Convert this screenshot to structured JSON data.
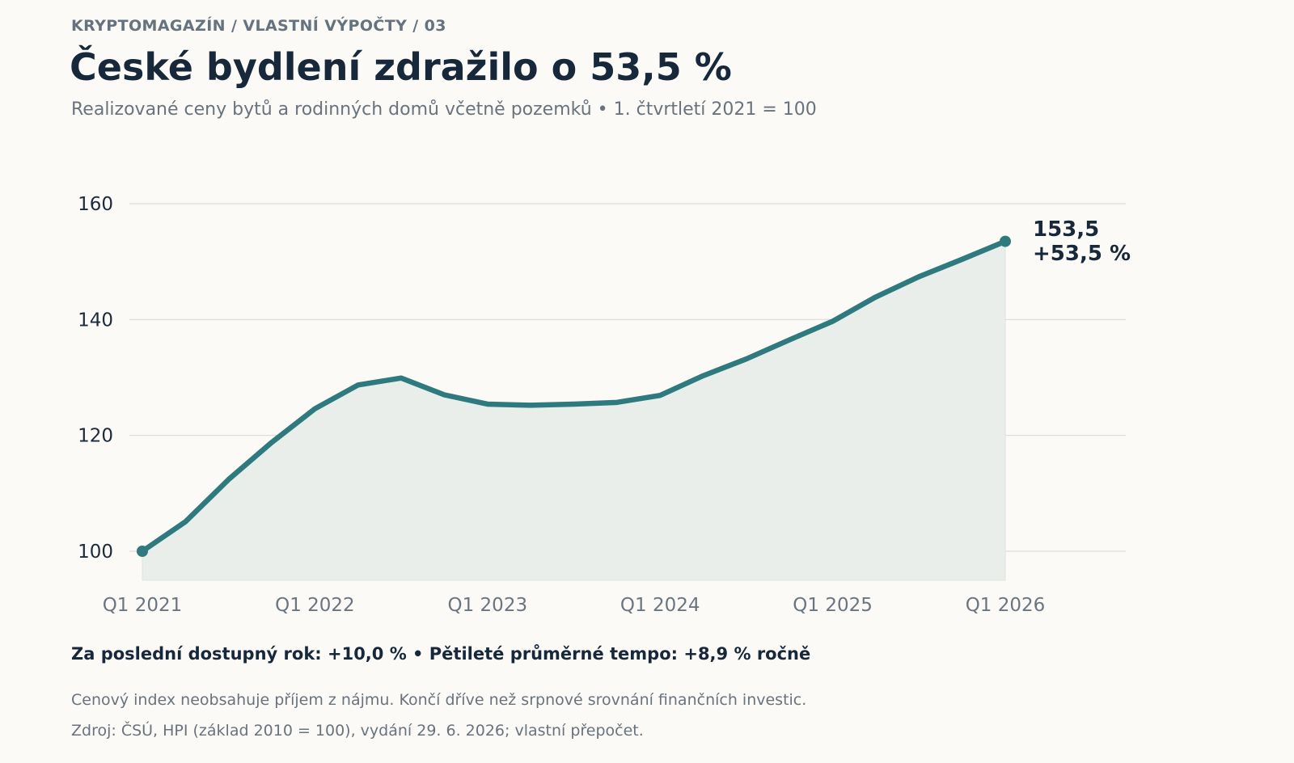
{
  "header": {
    "kicker": "KRYPTOMAGAZÍN  /  VLASTNÍ VÝPOČTY  /  03",
    "title": "České bydlení zdražilo o 53,5 %",
    "subtitle": "Realizované ceny bytů a rodinných domů včetně pozemků  •  1. čtvrtletí 2021 = 100"
  },
  "chart_data": {
    "type": "area",
    "title": "České bydlení zdražilo o 53,5 %",
    "subtitle": "Realizované ceny bytů a rodinných domů včetně pozemků  •  1. čtvrtletí 2021 = 100",
    "x": [
      "Q1 2021",
      "Q2 2021",
      "Q3 2021",
      "Q4 2021",
      "Q1 2022",
      "Q2 2022",
      "Q3 2022",
      "Q4 2022",
      "Q1 2023",
      "Q2 2023",
      "Q3 2023",
      "Q4 2023",
      "Q1 2024",
      "Q2 2024",
      "Q3 2024",
      "Q4 2024",
      "Q1 2025",
      "Q2 2025",
      "Q3 2025",
      "Q4 2025",
      "Q1 2026"
    ],
    "values": [
      100,
      105.1,
      112.4,
      118.8,
      124.6,
      128.7,
      129.9,
      127.0,
      125.4,
      125.2,
      125.4,
      125.7,
      126.9,
      130.3,
      133.2,
      136.5,
      139.7,
      143.9,
      147.4,
      150.4,
      153.5
    ],
    "x_tick_labels": [
      "Q1 2021",
      "Q1 2022",
      "Q1 2023",
      "Q1 2024",
      "Q1 2025",
      "Q1 2026"
    ],
    "y_ticks": [
      100,
      120,
      140,
      160
    ],
    "y_tick_labels": [
      "100",
      "120",
      "140",
      "160"
    ],
    "ylim": [
      95,
      163
    ],
    "xlabel": "",
    "ylabel": "",
    "grid": "horizontal",
    "legend": "none",
    "end_label": {
      "value": "153,5",
      "change": "+53,5 %"
    },
    "colors": {
      "line": "#2e7a7e",
      "area_fill": "#e9eeeb",
      "grid": "#d9dcdc",
      "tick_y": "#1d2a3a",
      "tick_x": "#6b7580"
    }
  },
  "footer": {
    "summary": "Za poslední dostupný rok: +10,0 %  •  Pětileté průměrné tempo: +8,9 % ročně",
    "note": "Cenový index neobsahuje příjem z nájmu. Končí dříve než srpnové srovnání finančních investic.",
    "source": "Zdroj: ČSÚ, HPI (základ 2010 = 100), vydání 29. 6. 2026; vlastní přepočet."
  }
}
